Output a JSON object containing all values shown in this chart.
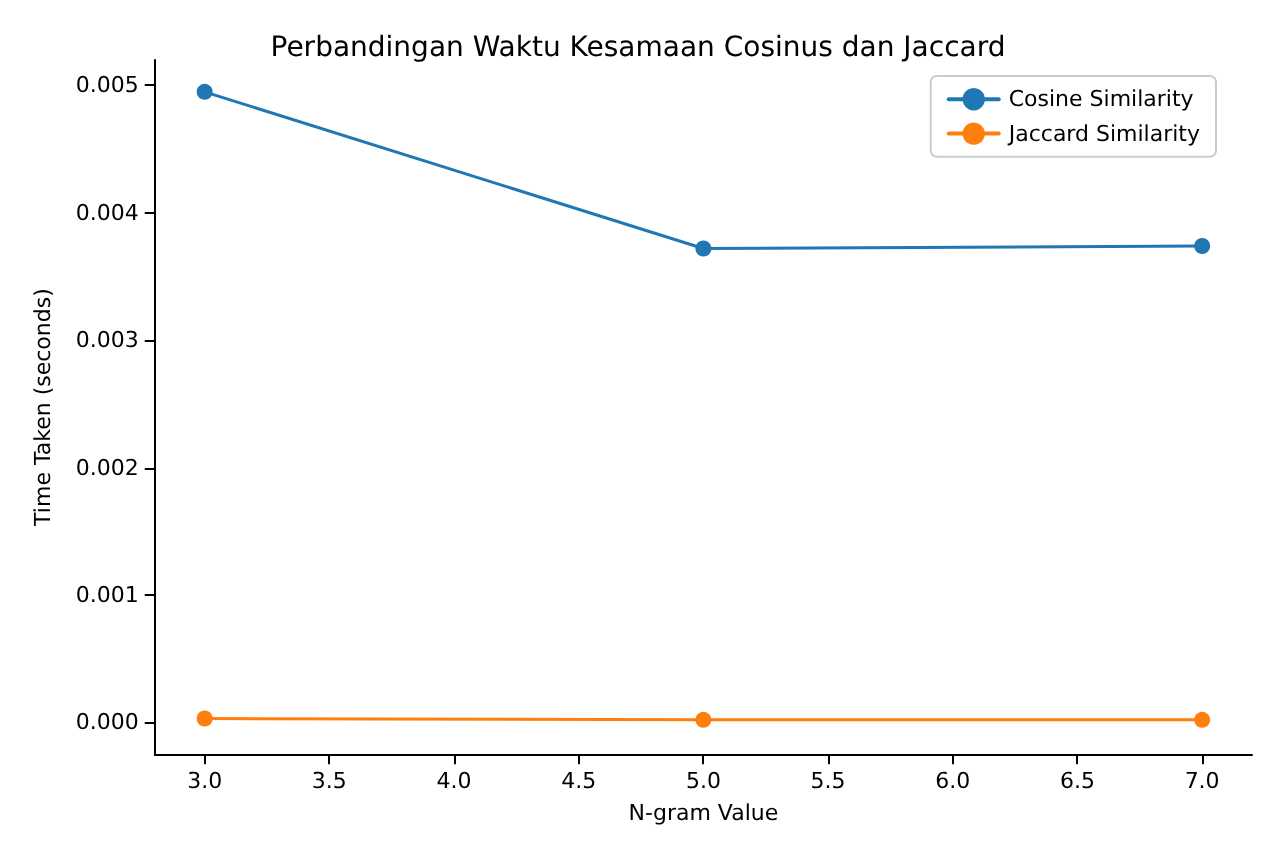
{
  "chart_data": {
    "type": "line",
    "title": "Perbandingan Waktu Kesamaan Cosinus dan Jaccard",
    "xlabel": "N-gram Value",
    "ylabel": "Time Taken (seconds)",
    "x": [
      3,
      5,
      7
    ],
    "series": [
      {
        "name": "Cosine Similarity",
        "color": "#1f77b4",
        "values": [
          0.00495,
          0.00372,
          0.00374
        ]
      },
      {
        "name": "Jaccard Similarity",
        "color": "#ff7f0e",
        "values": [
          3e-05,
          2e-05,
          2e-05
        ]
      }
    ],
    "xlim": [
      2.8,
      7.2
    ],
    "xticks": [
      {
        "value": 3,
        "label": "3.0"
      },
      {
        "value": 3.5,
        "label": "3.5"
      },
      {
        "value": 4,
        "label": "4.0"
      },
      {
        "value": 4.5,
        "label": "4.5"
      },
      {
        "value": 5,
        "label": "5.0"
      },
      {
        "value": 5.5,
        "label": "5.5"
      },
      {
        "value": 6,
        "label": "6.0"
      },
      {
        "value": 6.5,
        "label": "6.5"
      },
      {
        "value": 7,
        "label": "7.0"
      }
    ],
    "ylim": [
      -0.00025,
      0.0052
    ],
    "yticks": [
      {
        "value": 0,
        "label": "0.000"
      },
      {
        "value": 0.001,
        "label": "0.001"
      },
      {
        "value": 0.002,
        "label": "0.002"
      },
      {
        "value": 0.003,
        "label": "0.003"
      },
      {
        "value": 0.004,
        "label": "0.004"
      },
      {
        "value": 0.005,
        "label": "0.005"
      }
    ],
    "legend": "top right",
    "grid": false,
    "marker": "circle",
    "line_style": "solid"
  }
}
